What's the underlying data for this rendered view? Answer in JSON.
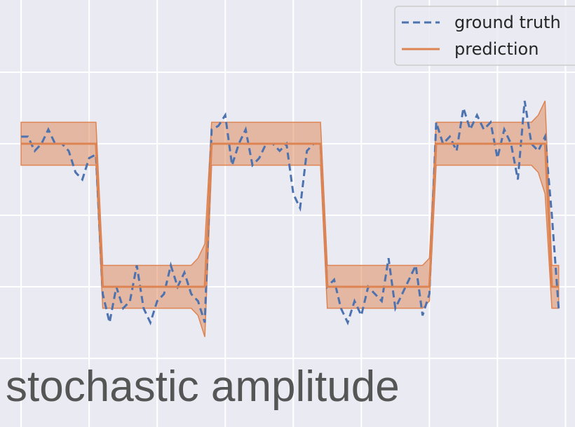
{
  "chart_data": {
    "type": "line",
    "title": "stochastic amplitude",
    "x": [
      0,
      1,
      2,
      3,
      4,
      5,
      6,
      7,
      8,
      9,
      10,
      11,
      12,
      13,
      14,
      15,
      16,
      17,
      18,
      19,
      20,
      21,
      22,
      23,
      24,
      25,
      26,
      27,
      28,
      29,
      30,
      31,
      32,
      33,
      34,
      35,
      36,
      37,
      38,
      39,
      40,
      41,
      42,
      43,
      44,
      45,
      46,
      47,
      48,
      49,
      50,
      51,
      52,
      53,
      54,
      55,
      56,
      57,
      58,
      59,
      60,
      61,
      62,
      63,
      64,
      65,
      66,
      67,
      68,
      69,
      70,
      71,
      72,
      73,
      74,
      75,
      76,
      77,
      78,
      79
    ],
    "series": [
      {
        "name": "ground truth",
        "color": "#4c72b0",
        "dash": true,
        "values": [
          1.1,
          1.1,
          0.9,
          1.0,
          1.2,
          1.0,
          1.0,
          0.9,
          0.6,
          0.5,
          0.8,
          0.85,
          -1.1,
          -1.5,
          -1.0,
          -1.3,
          -1.2,
          -0.7,
          -1.3,
          -1.5,
          -1.2,
          -1.1,
          -0.7,
          -1.0,
          -0.8,
          -1.1,
          -1.2,
          -1.5,
          1.2,
          1.25,
          1.4,
          0.7,
          1.0,
          1.2,
          0.7,
          0.8,
          1.0,
          1.0,
          0.9,
          1.0,
          0.3,
          0.1,
          0.9,
          1.0,
          1.0,
          -1.0,
          -0.9,
          -1.3,
          -1.5,
          -1.2,
          -1.4,
          -1.0,
          -1.1,
          -1.2,
          -0.6,
          -1.3,
          -1.1,
          -0.9,
          -0.7,
          -1.4,
          -1.1,
          1.3,
          1.0,
          1.1,
          0.9,
          1.5,
          1.2,
          1.4,
          1.2,
          1.3,
          0.8,
          1.2,
          1.0,
          0.5,
          1.6,
          1.0,
          0.9,
          1.1,
          0.0,
          -1.3
        ]
      },
      {
        "name": "prediction",
        "color": "#dd8452",
        "values": [
          1,
          1,
          1,
          1,
          1,
          1,
          1,
          1,
          1,
          1,
          1,
          1,
          -1,
          -1,
          -1,
          -1,
          -1,
          -1,
          -1,
          -1,
          -1,
          -1,
          -1,
          -1,
          -1,
          -1,
          -1,
          -1,
          1,
          1,
          1,
          1,
          1,
          1,
          1,
          1,
          1,
          1,
          1,
          1,
          1,
          1,
          1,
          1,
          1,
          -1,
          -1,
          -1,
          -1,
          -1,
          -1,
          -1,
          -1,
          -1,
          -1,
          -1,
          -1,
          -1,
          -1,
          -1,
          -1,
          1,
          1,
          1,
          1,
          1,
          1,
          1,
          1,
          1,
          1,
          1,
          1,
          1,
          1,
          1,
          1,
          1,
          -1,
          -1
        ],
        "lower": [
          0.7,
          0.7,
          0.7,
          0.7,
          0.7,
          0.7,
          0.7,
          0.7,
          0.7,
          0.7,
          0.7,
          0.7,
          -1.3,
          -1.3,
          -1.3,
          -1.3,
          -1.3,
          -1.3,
          -1.3,
          -1.3,
          -1.3,
          -1.3,
          -1.3,
          -1.3,
          -1.3,
          -1.3,
          -1.4,
          -1.7,
          0.7,
          0.7,
          0.7,
          0.7,
          0.7,
          0.7,
          0.7,
          0.7,
          0.7,
          0.7,
          0.7,
          0.7,
          0.7,
          0.7,
          0.7,
          0.7,
          0.7,
          -1.3,
          -1.3,
          -1.3,
          -1.3,
          -1.3,
          -1.3,
          -1.3,
          -1.3,
          -1.3,
          -1.3,
          -1.3,
          -1.3,
          -1.3,
          -1.3,
          -1.3,
          -1.2,
          0.7,
          0.7,
          0.7,
          0.7,
          0.7,
          0.7,
          0.7,
          0.7,
          0.7,
          0.7,
          0.7,
          0.7,
          0.7,
          0.7,
          0.7,
          0.6,
          0.3,
          -1.3,
          -1.3
        ],
        "upper": [
          1.3,
          1.3,
          1.3,
          1.3,
          1.3,
          1.3,
          1.3,
          1.3,
          1.3,
          1.3,
          1.3,
          1.3,
          -0.7,
          -0.7,
          -0.7,
          -0.7,
          -0.7,
          -0.7,
          -0.7,
          -0.7,
          -0.7,
          -0.7,
          -0.7,
          -0.7,
          -0.7,
          -0.7,
          -0.6,
          -0.4,
          1.3,
          1.3,
          1.3,
          1.3,
          1.3,
          1.3,
          1.3,
          1.3,
          1.3,
          1.3,
          1.3,
          1.3,
          1.3,
          1.3,
          1.3,
          1.3,
          1.3,
          -0.7,
          -0.7,
          -0.7,
          -0.7,
          -0.7,
          -0.7,
          -0.7,
          -0.7,
          -0.7,
          -0.7,
          -0.7,
          -0.7,
          -0.7,
          -0.7,
          -0.7,
          -0.6,
          1.3,
          1.3,
          1.3,
          1.3,
          1.3,
          1.3,
          1.3,
          1.3,
          1.3,
          1.3,
          1.3,
          1.3,
          1.3,
          1.3,
          1.3,
          1.4,
          1.6,
          -0.7,
          -0.7
        ]
      }
    ],
    "xlim": [
      -3.1,
      81.4
    ],
    "ylim": [
      -2.96,
      3.01
    ],
    "xticks": [
      0,
      10,
      20,
      30,
      40,
      50,
      60,
      70,
      80
    ],
    "yticks": [
      -2,
      -1,
      0,
      1,
      2
    ],
    "grid": true,
    "background": "#eaeaf2",
    "legend": "upper right"
  }
}
